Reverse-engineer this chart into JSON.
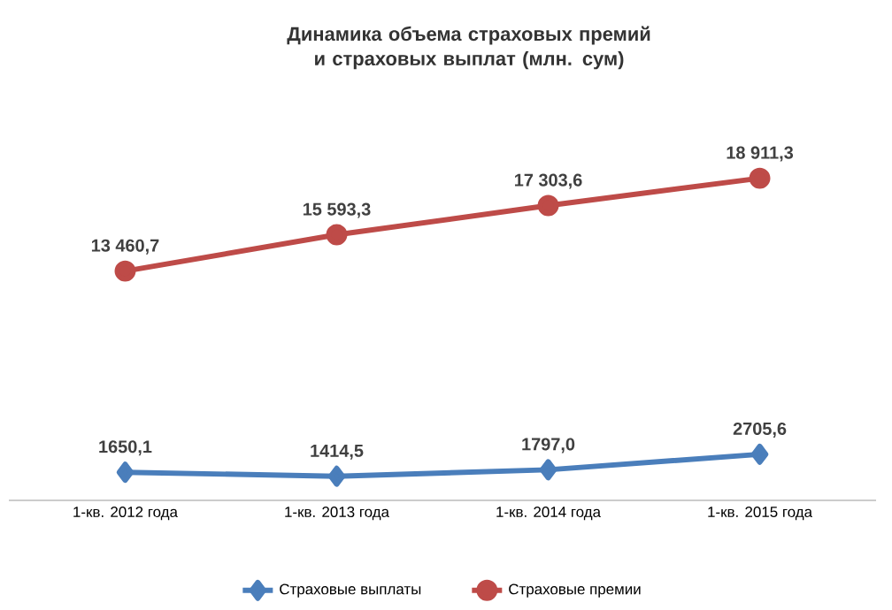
{
  "chart_data": {
    "type": "line",
    "title": "Динамика объема страховых премий и страховых выплат (млн. сум)",
    "categories": [
      "1-кв. 2012 года",
      "1-кв. 2013 года",
      "1-кв. 2014 года",
      "1-кв. 2015 года"
    ],
    "series": [
      {
        "name": "Страховые выплаты",
        "color": "#4a7ebb",
        "marker": "diamond",
        "values": [
          1650.1,
          1414.5,
          1797.0,
          2705.6
        ],
        "value_labels": [
          "1650,1",
          "1414,5",
          "1797,0",
          "2705,6"
        ]
      },
      {
        "name": "Страховые премии",
        "color": "#be4b48",
        "marker": "circle",
        "values": [
          13460.7,
          15593.3,
          17303.6,
          18911.3
        ],
        "value_labels": [
          "13 460,7",
          "15 593,3",
          "17 303,6",
          "18 911,3"
        ]
      }
    ],
    "legend": "bottom"
  }
}
